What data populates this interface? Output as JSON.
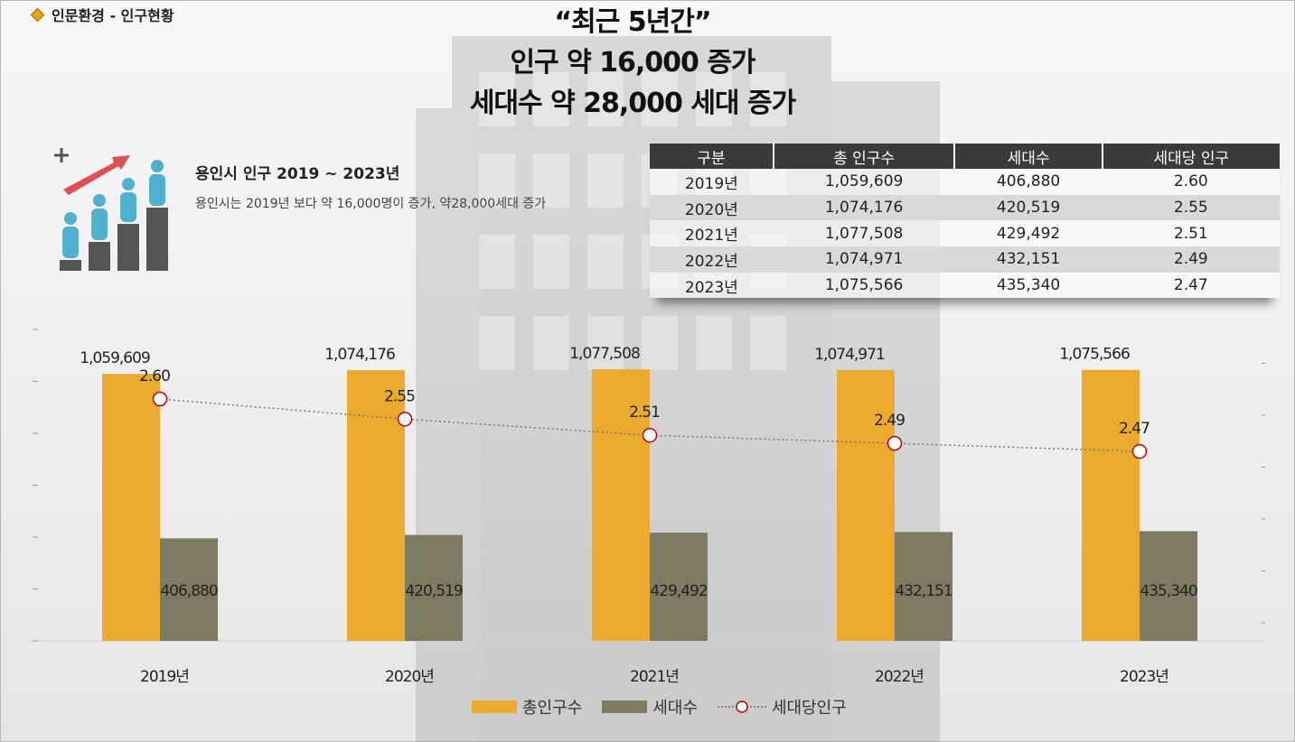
{
  "section": {
    "label": "인문환경 - 인구현황"
  },
  "headline": {
    "line1": "“최근 5년간”",
    "line2": "인구 약 16,000 증가",
    "line3": "세대수  약 28,000 세대 증가"
  },
  "info": {
    "title": "용인시 인구 2019 ~ 2023년",
    "description": "용인시는 2019년 보다 약 16,000명이 증가, 약28,000세대 증가"
  },
  "table": {
    "headers": [
      "구분",
      "총 인구수",
      "세대수",
      "세대당 인구"
    ],
    "rows": [
      [
        "2019년",
        "1,059,609",
        "406,880",
        "2.60"
      ],
      [
        "2020년",
        "1,074,176",
        "420,519",
        "2.55"
      ],
      [
        "2021년",
        "1,077,508",
        "429,492",
        "2.51"
      ],
      [
        "2022년",
        "1,074,971",
        "432,151",
        "2.49"
      ],
      [
        "2023년",
        "1,075,566",
        "435,340",
        "2.47"
      ]
    ]
  },
  "colors": {
    "population": "#eaaa2e",
    "households": "#7c7c62",
    "ratio_marker": "#c00000",
    "header_bg": "#3a3a3a"
  },
  "legend": {
    "population": "총인구수",
    "households": "세대수",
    "ratio": "세대당인구"
  },
  "chart_data": {
    "type": "bar",
    "categories": [
      "2019년",
      "2020년",
      "2021년",
      "2022년",
      "2023년"
    ],
    "series": [
      {
        "name": "총인구수",
        "type": "bar",
        "values": [
          1059609,
          1074176,
          1077508,
          1074971,
          1075566
        ],
        "labels": [
          "1,059,609",
          "1,074,176",
          "1,077,508",
          "1,074,971",
          "1,075,566"
        ]
      },
      {
        "name": "세대수",
        "type": "bar",
        "values": [
          406880,
          420519,
          429492,
          432151,
          435340
        ],
        "labels": [
          "406,880",
          "420,519",
          "429,492",
          "432,151",
          "435,340"
        ]
      },
      {
        "name": "세대당인구",
        "type": "line",
        "axis": "right",
        "values": [
          2.6,
          2.55,
          2.51,
          2.49,
          2.47
        ],
        "labels": [
          "2.60",
          "2.55",
          "2.51",
          "2.49",
          "2.47"
        ]
      }
    ],
    "ylim": [
      0,
      1200000
    ],
    "y2lim": [
      2.0,
      2.75
    ],
    "grid": false,
    "legend_position": "bottom"
  }
}
